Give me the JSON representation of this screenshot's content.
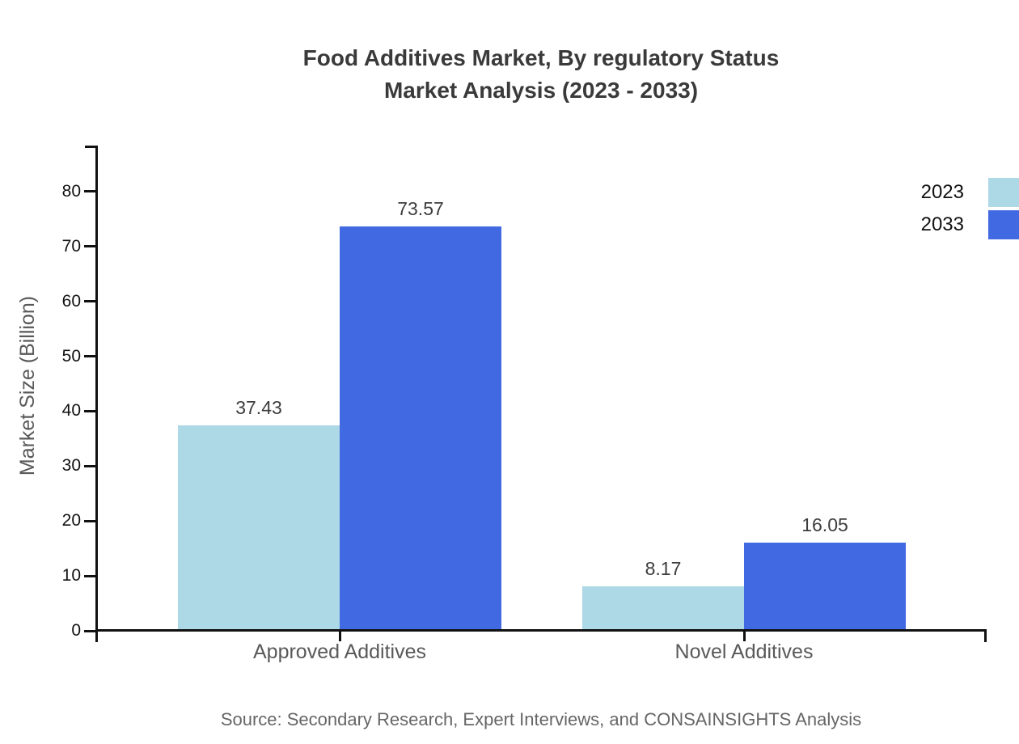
{
  "title": {
    "line1": "Food Additives Market, By regulatory Status",
    "line2": "Market Analysis (2023 - 2033)"
  },
  "source": "Source: Secondary Research, Expert Interviews, and CONSAINSIGHTS Analysis",
  "chart_data": {
    "type": "bar",
    "title": "Food Additives Market, By regulatory Status Market Analysis (2023 - 2033)",
    "categories": [
      "Approved Additives",
      "Novel Additives"
    ],
    "series": [
      {
        "name": "2023",
        "color": "#add8e6",
        "values": [
          37.43,
          8.17
        ]
      },
      {
        "name": "2033",
        "color": "#4169e1",
        "values": [
          73.57,
          16.05
        ]
      }
    ],
    "xlabel": "",
    "ylabel": "Market Size (Billion)",
    "ylim": [
      0,
      88
    ],
    "yticks": [
      0,
      10,
      20,
      30,
      40,
      50,
      60,
      70,
      80
    ],
    "grid": false,
    "legend_position": "top-right",
    "value_labels": true
  }
}
